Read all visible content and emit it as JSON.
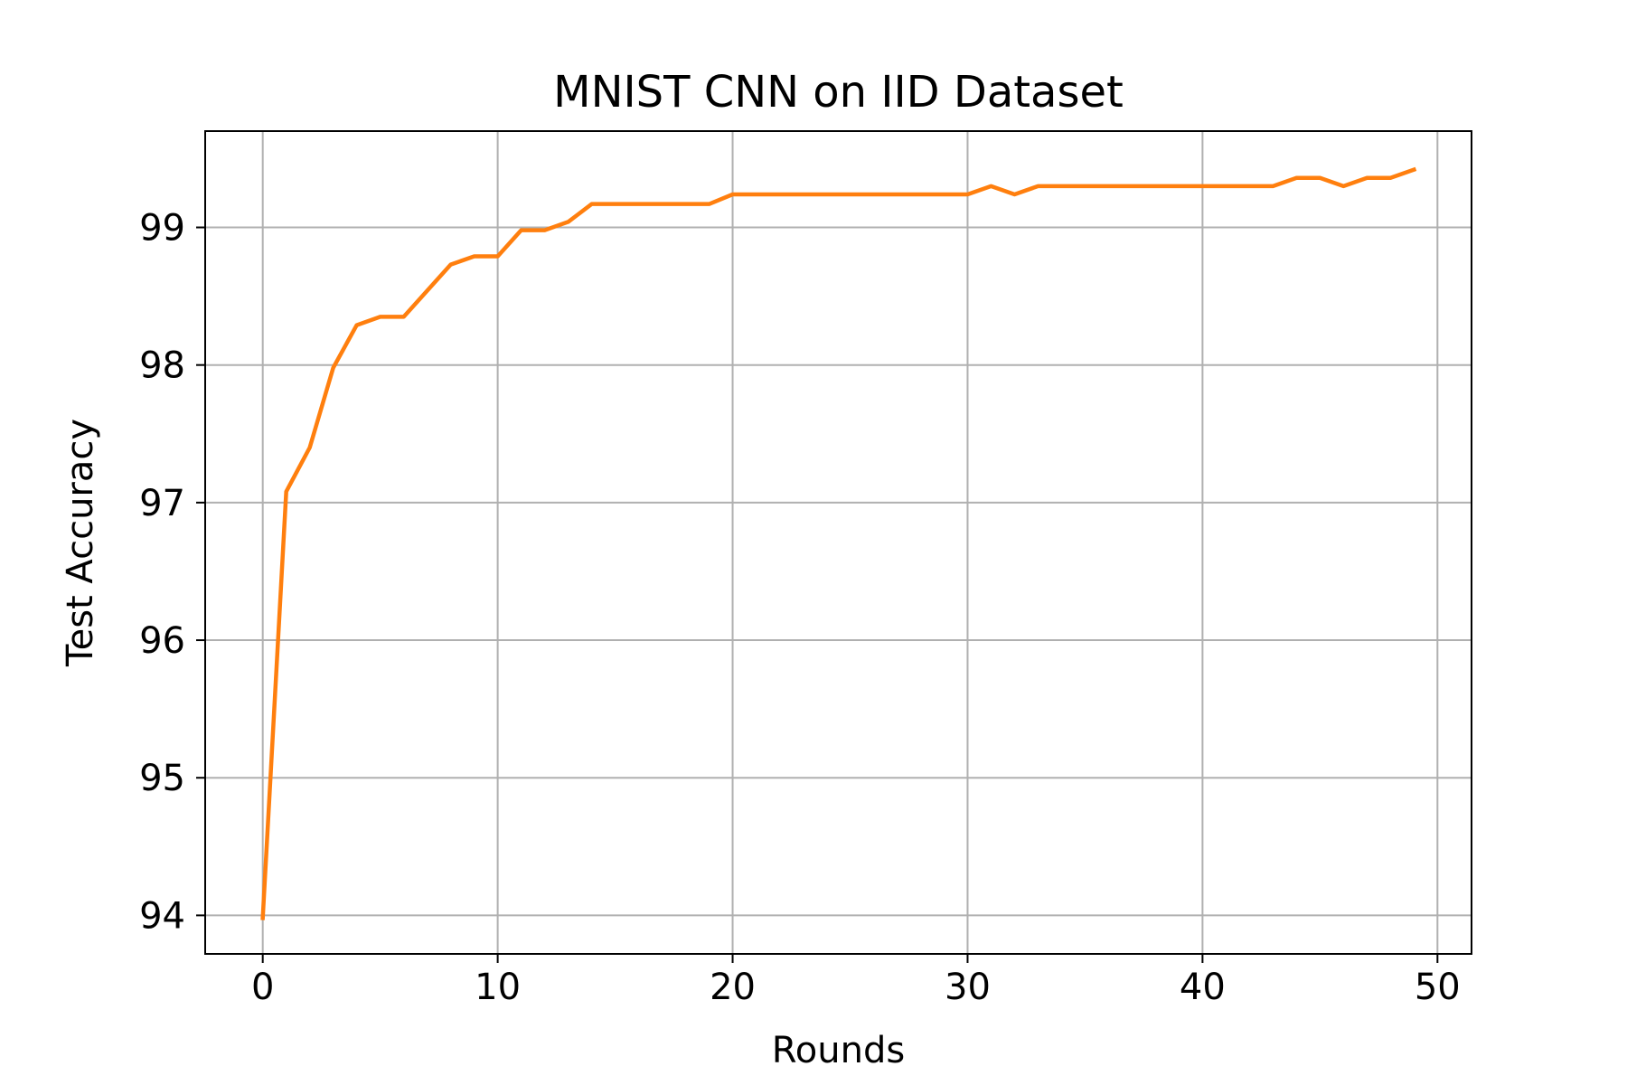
{
  "chart_data": {
    "type": "line",
    "title": "MNIST CNN on IID Dataset",
    "xlabel": "Rounds",
    "ylabel": "Test Accuracy",
    "xlim": [
      -2.45,
      51.45
    ],
    "ylim": [
      93.72,
      99.7
    ],
    "xticks": [
      0,
      10,
      20,
      30,
      40,
      50
    ],
    "yticks": [
      94,
      95,
      96,
      97,
      98,
      99
    ],
    "grid": true,
    "series": [
      {
        "color": "#ff7f0e",
        "x": [
          0,
          1,
          2,
          3,
          4,
          5,
          6,
          7,
          8,
          9,
          10,
          11,
          12,
          13,
          14,
          15,
          16,
          17,
          18,
          19,
          20,
          21,
          22,
          23,
          24,
          25,
          26,
          27,
          28,
          29,
          30,
          31,
          32,
          33,
          34,
          35,
          36,
          37,
          38,
          39,
          40,
          41,
          42,
          43,
          44,
          45,
          46,
          47,
          48,
          49
        ],
        "y": [
          93.98,
          97.08,
          97.4,
          97.98,
          98.29,
          98.35,
          98.35,
          98.54,
          98.73,
          98.79,
          98.79,
          98.98,
          98.98,
          99.04,
          99.17,
          99.17,
          99.17,
          99.17,
          99.17,
          99.17,
          99.24,
          99.24,
          99.24,
          99.24,
          99.24,
          99.24,
          99.24,
          99.24,
          99.24,
          99.24,
          99.24,
          99.3,
          99.24,
          99.3,
          99.3,
          99.3,
          99.3,
          99.3,
          99.3,
          99.3,
          99.3,
          99.3,
          99.3,
          99.3,
          99.36,
          99.36,
          99.3,
          99.36,
          99.36,
          99.42
        ]
      }
    ]
  }
}
